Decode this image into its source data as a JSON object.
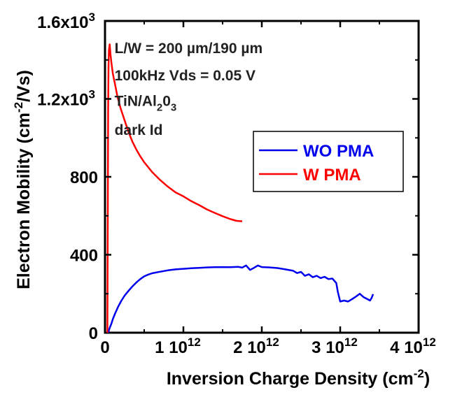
{
  "chart_data": {
    "type": "line",
    "title": "",
    "xlabel": "Inversion Charge Density (cm",
    "xlabel_sup": "-2",
    "xlabel_end": ")",
    "ylabel": "Electron Mobility (cm",
    "ylabel_sup": "-2",
    "ylabel_end": "/Vs)",
    "xlim": [
      0,
      4000000000000
    ],
    "ylim": [
      0,
      1600
    ],
    "grid": false,
    "legend_position": "right-middle",
    "x_ticks": [
      {
        "value": 0,
        "base": "0",
        "exp": ""
      },
      {
        "value": 1000000000000,
        "base": "1 10",
        "exp": "12"
      },
      {
        "value": 2000000000000,
        "base": "2 10",
        "exp": "12"
      },
      {
        "value": 3000000000000,
        "base": "3 10",
        "exp": "12"
      },
      {
        "value": 4000000000000,
        "base": "4 10",
        "exp": "12"
      }
    ],
    "y_ticks": [
      {
        "value": 0,
        "base": "0",
        "exp": ""
      },
      {
        "value": 400,
        "base": "400",
        "exp": ""
      },
      {
        "value": 800,
        "base": "800",
        "exp": ""
      },
      {
        "value": 1200,
        "base": "1.2x10",
        "exp": "3"
      },
      {
        "value": 1600,
        "base": "1.6x10",
        "exp": "3"
      }
    ],
    "annotations": [
      {
        "text": "L/W = 200 µm/190 µm",
        "x": 300000000000,
        "y": 1460
      },
      {
        "text": "100kHz Vds = 0.05 V",
        "x": 300000000000,
        "y": 1320
      },
      {
        "text": "TiN/Al",
        "sub1": "2",
        "mid": "0",
        "sub2": "3",
        "x": 300000000000,
        "y": 1190
      },
      {
        "text": "dark Id",
        "x": 300000000000,
        "y": 1040
      }
    ],
    "series": [
      {
        "name": "WO PMA",
        "color": "#0000ee",
        "points": [
          [
            40000000000.0,
            0
          ],
          [
            60000000000.0,
            25
          ],
          [
            80000000000.0,
            45
          ],
          [
            100000000000.0,
            70
          ],
          [
            130000000000.0,
            100
          ],
          [
            170000000000.0,
            135
          ],
          [
            210000000000.0,
            165
          ],
          [
            250000000000.0,
            190
          ],
          [
            300000000000.0,
            215
          ],
          [
            350000000000.0,
            238
          ],
          [
            400000000000.0,
            258
          ],
          [
            450000000000.0,
            275
          ],
          [
            500000000000.0,
            289
          ],
          [
            550000000000.0,
            298
          ],
          [
            600000000000.0,
            305
          ],
          [
            700000000000.0,
            313
          ],
          [
            800000000000.0,
            320
          ],
          [
            900000000000.0,
            325
          ],
          [
            1000000000000.0,
            328
          ],
          [
            1100000000000.0,
            331
          ],
          [
            1200000000000.0,
            333
          ],
          [
            1300000000000.0,
            335
          ],
          [
            1400000000000.0,
            336
          ],
          [
            1500000000000.0,
            337
          ],
          [
            1600000000000.0,
            336
          ],
          [
            1700000000000.0,
            338
          ],
          [
            1750000000000.0,
            334
          ],
          [
            1800000000000.0,
            345
          ],
          [
            1850000000000.0,
            322
          ],
          [
            1900000000000.0,
            333
          ],
          [
            1950000000000.0,
            345
          ],
          [
            2000000000000.0,
            337
          ],
          [
            2100000000000.0,
            335
          ],
          [
            2200000000000.0,
            332
          ],
          [
            2300000000000.0,
            325
          ],
          [
            2400000000000.0,
            318
          ],
          [
            2450000000000.0,
            306
          ],
          [
            2500000000000.0,
            312
          ],
          [
            2550000000000.0,
            292
          ],
          [
            2600000000000.0,
            300
          ],
          [
            2650000000000.0,
            285
          ],
          [
            2700000000000.0,
            292
          ],
          [
            2750000000000.0,
            280
          ],
          [
            2800000000000.0,
            287
          ],
          [
            2850000000000.0,
            275
          ],
          [
            2900000000000.0,
            278
          ],
          [
            2950000000000.0,
            255
          ],
          [
            2970000000000.0,
            210
          ],
          [
            3000000000000.0,
            160
          ],
          [
            3050000000000.0,
            165
          ],
          [
            3100000000000.0,
            160
          ],
          [
            3150000000000.0,
            172
          ],
          [
            3200000000000.0,
            185
          ],
          [
            3250000000000.0,
            200
          ],
          [
            3300000000000.0,
            182
          ],
          [
            3350000000000.0,
            172
          ],
          [
            3380000000000.0,
            165
          ],
          [
            3400000000000.0,
            178
          ],
          [
            3420000000000.0,
            198
          ]
        ]
      },
      {
        "name": "W PMA",
        "color": "#ff0000",
        "points": [
          [
            30000000000.0,
            0
          ],
          [
            35000000000.0,
            520
          ],
          [
            40000000000.0,
            1150
          ],
          [
            45000000000.0,
            1360
          ],
          [
            50000000000.0,
            1450
          ],
          [
            60000000000.0,
            1480
          ],
          [
            70000000000.0,
            1430
          ],
          [
            80000000000.0,
            1390
          ],
          [
            100000000000.0,
            1330
          ],
          [
            130000000000.0,
            1270
          ],
          [
            160000000000.0,
            1210
          ],
          [
            200000000000.0,
            1150
          ],
          [
            250000000000.0,
            1090
          ],
          [
            300000000000.0,
            1030
          ],
          [
            350000000000.0,
            980
          ],
          [
            400000000000.0,
            940
          ],
          [
            450000000000.0,
            905
          ],
          [
            500000000000.0,
            875
          ],
          [
            600000000000.0,
            825
          ],
          [
            700000000000.0,
            785
          ],
          [
            800000000000.0,
            750
          ],
          [
            900000000000.0,
            720
          ],
          [
            1000000000000.0,
            700
          ],
          [
            1100000000000.0,
            675
          ],
          [
            1200000000000.0,
            655
          ],
          [
            1300000000000.0,
            633
          ],
          [
            1400000000000.0,
            615
          ],
          [
            1500000000000.0,
            598
          ],
          [
            1600000000000.0,
            583
          ],
          [
            1680000000000.0,
            574
          ],
          [
            1750000000000.0,
            572
          ]
        ]
      }
    ]
  }
}
